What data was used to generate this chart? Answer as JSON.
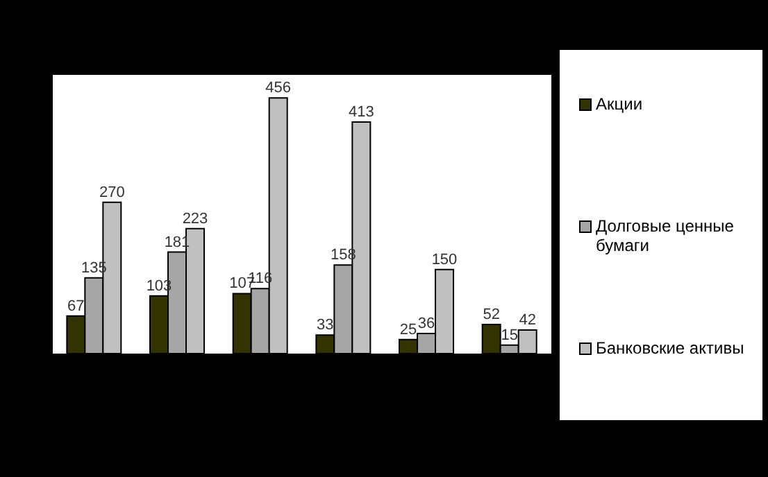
{
  "chart_data": {
    "type": "bar",
    "categories": [
      null,
      null,
      null,
      null,
      null,
      null
    ],
    "series": [
      {
        "name": "Акции",
        "color": "#333300",
        "values": [
          67,
          103,
          107,
          33,
          25,
          52
        ]
      },
      {
        "name": "Долговые ценные бумаги",
        "color": "#a6a6a6",
        "values": [
          135,
          181,
          116,
          158,
          36,
          15
        ]
      },
      {
        "name": "Банковские активы",
        "color": "#c0c0c0",
        "values": [
          270,
          223,
          456,
          413,
          150,
          42
        ]
      }
    ],
    "data_labels": true,
    "legend": "right",
    "grid": false
  }
}
